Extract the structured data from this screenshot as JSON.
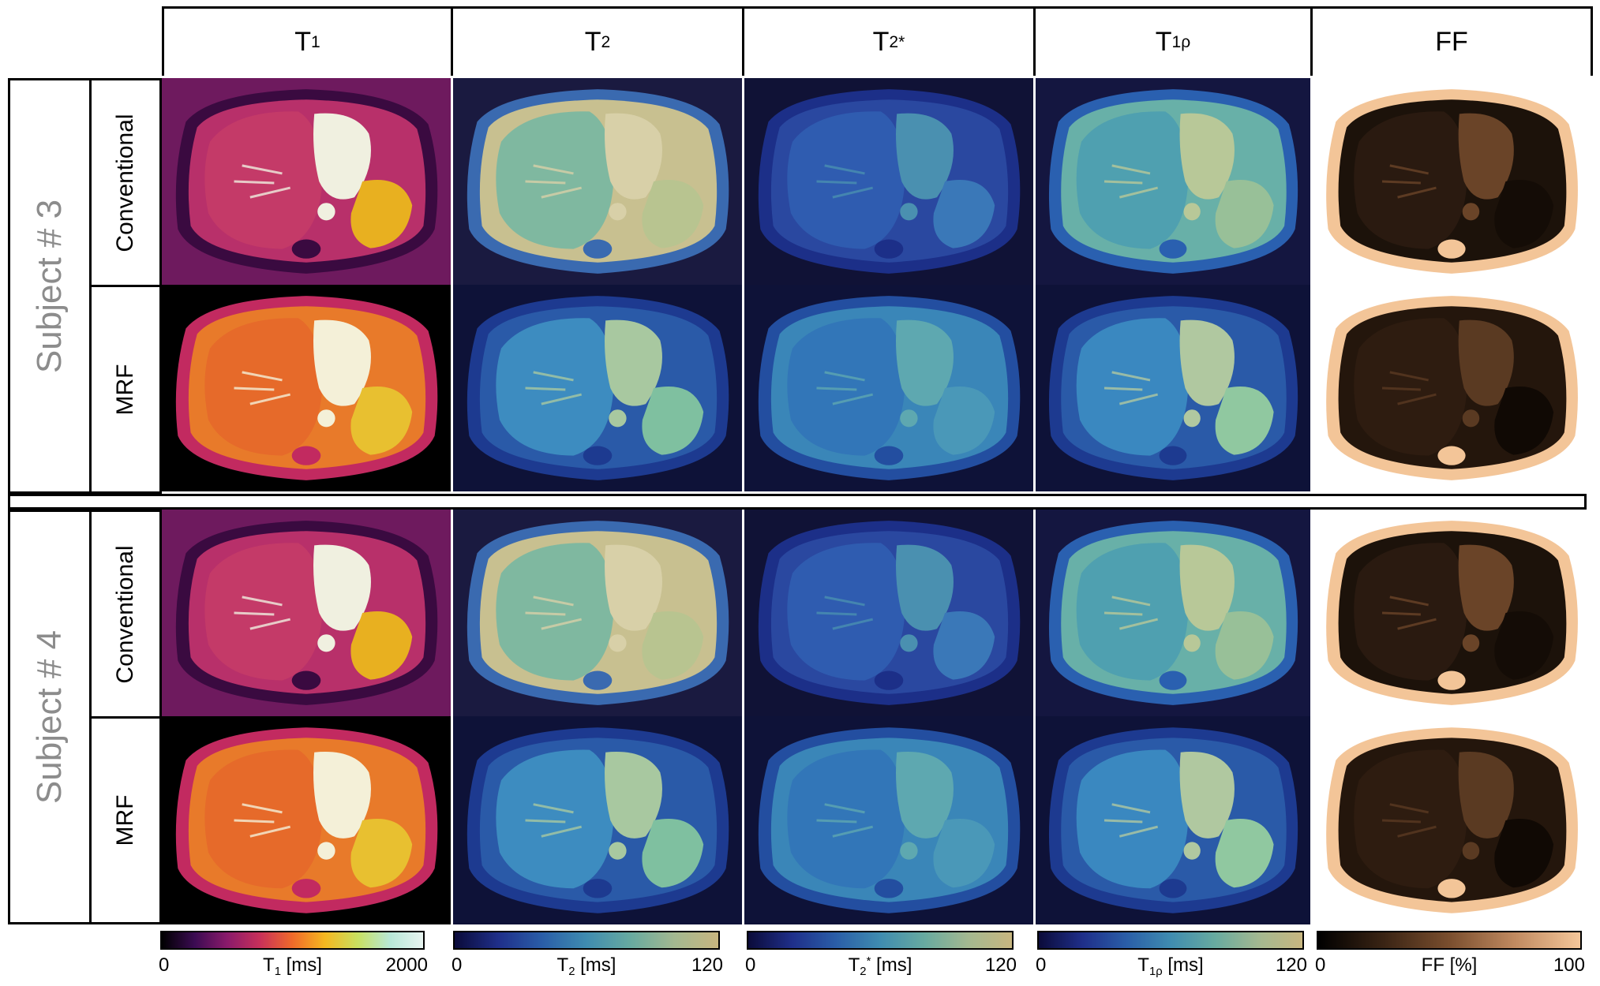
{
  "columns": [
    {
      "id": "t1",
      "main": "T",
      "sub": "1",
      "sup": ""
    },
    {
      "id": "t2",
      "main": "T",
      "sub": "2",
      "sup": ""
    },
    {
      "id": "t2s",
      "main": "T",
      "sub": "2",
      "sup": "*"
    },
    {
      "id": "t1r",
      "main": "T",
      "sub": "1ρ",
      "sup": ""
    },
    {
      "id": "ff",
      "main": "FF",
      "sub": "",
      "sup": ""
    }
  ],
  "subjects": [
    {
      "label": "Subject # 3",
      "rows": [
        "Conventional",
        "MRF"
      ]
    },
    {
      "label": "Subject # 4",
      "rows": [
        "Conventional",
        "MRF"
      ]
    }
  ],
  "colorbars": [
    {
      "min": "0",
      "max": "2000",
      "label_main": "T",
      "label_sub": "1",
      "label_sup": "",
      "label_unit": " [ms]",
      "colormap": [
        "#000000",
        "#3b0b52",
        "#8a1a6b",
        "#c8305a",
        "#f06a2a",
        "#f5b820",
        "#c8e060",
        "#b8e8d8",
        "#e8f4f0"
      ]
    },
    {
      "min": "0",
      "max": "120",
      "label_main": "T",
      "label_sub": "2",
      "label_sup": "",
      "label_unit": " [ms]",
      "colormap": [
        "#0b0b3a",
        "#1f2f8a",
        "#2a5ea8",
        "#3f8cb0",
        "#67aaa0",
        "#a3b890",
        "#c8b680"
      ]
    },
    {
      "min": "0",
      "max": "120",
      "label_main": "T",
      "label_sub": "2",
      "label_sup": "*",
      "label_unit": " [ms]",
      "colormap": [
        "#0b0b3a",
        "#1f2f8a",
        "#2a5ea8",
        "#3f8cb0",
        "#67aaa0",
        "#a3b890",
        "#c8b680"
      ]
    },
    {
      "min": "0",
      "max": "120",
      "label_main": "T",
      "label_sub": "1ρ",
      "label_sup": "",
      "label_unit": " [ms]",
      "colormap": [
        "#0b0b3a",
        "#1f2f8a",
        "#2a5ea8",
        "#3f8cb0",
        "#67aaa0",
        "#a3b890",
        "#c8b680"
      ]
    },
    {
      "min": "0",
      "max": "100",
      "label_main": "FF",
      "label_sub": "",
      "label_sup": "",
      "label_unit": " [%]",
      "colormap": [
        "#000000",
        "#3a2414",
        "#7a4e2e",
        "#c08a60",
        "#f5c79a"
      ]
    }
  ],
  "panel_colors": {
    "t1_conv": {
      "bg": "#6e1a5e",
      "body": "#b8306a",
      "liver": "#c43a68",
      "hot": "#f0f0e0",
      "spleen": "#e8b020",
      "rim": "#3a0a40"
    },
    "t1_mrf": {
      "bg": "#000000",
      "body": "#e87a2a",
      "liver": "#e66a2a",
      "hot": "#f4f0d8",
      "spleen": "#e8c030",
      "rim": "#c22a60"
    },
    "t2_conv": {
      "bg": "#1a1a40",
      "body": "#c8c090",
      "liver": "#7fb8a0",
      "hot": "#d8d0a8",
      "spleen": "#b8c490",
      "rim": "#3a6ab0"
    },
    "t2_mrf": {
      "bg": "#0e1238",
      "body": "#2a5aa8",
      "liver": "#3d8cc0",
      "hot": "#a8c8a0",
      "spleen": "#7fc0a0",
      "rim": "#1d3a90"
    },
    "t2s_conv": {
      "bg": "#101236",
      "body": "#2a48a0",
      "liver": "#2f5cb0",
      "hot": "#4a90b0",
      "spleen": "#3a78b8",
      "rim": "#1c2f88"
    },
    "t2s_mrf": {
      "bg": "#0e1238",
      "body": "#3a86b8",
      "liver": "#3276b8",
      "hot": "#5ea8b0",
      "spleen": "#4a98b8",
      "rim": "#234ea0"
    },
    "t1r_conv": {
      "bg": "#141640",
      "body": "#68b0a8",
      "liver": "#4fa0b0",
      "hot": "#b8c898",
      "spleen": "#98c098",
      "rim": "#2a60b0"
    },
    "t1r_mrf": {
      "bg": "#0e1238",
      "body": "#2a5aa8",
      "liver": "#3a88c0",
      "hot": "#b0c8a0",
      "spleen": "#90c8a0",
      "rim": "#1d3a90"
    },
    "ff_conv": {
      "bg": "#ffffff",
      "body": "#1c120a",
      "liver": "#2a1a10",
      "hot": "#6a4428",
      "spleen": "#140c06",
      "rim": "#f3c598"
    },
    "ff_mrf": {
      "bg": "#ffffff",
      "body": "#24160c",
      "liver": "#2e1c10",
      "hot": "#5a3a22",
      "spleen": "#100904",
      "rim": "#f3c598"
    }
  }
}
